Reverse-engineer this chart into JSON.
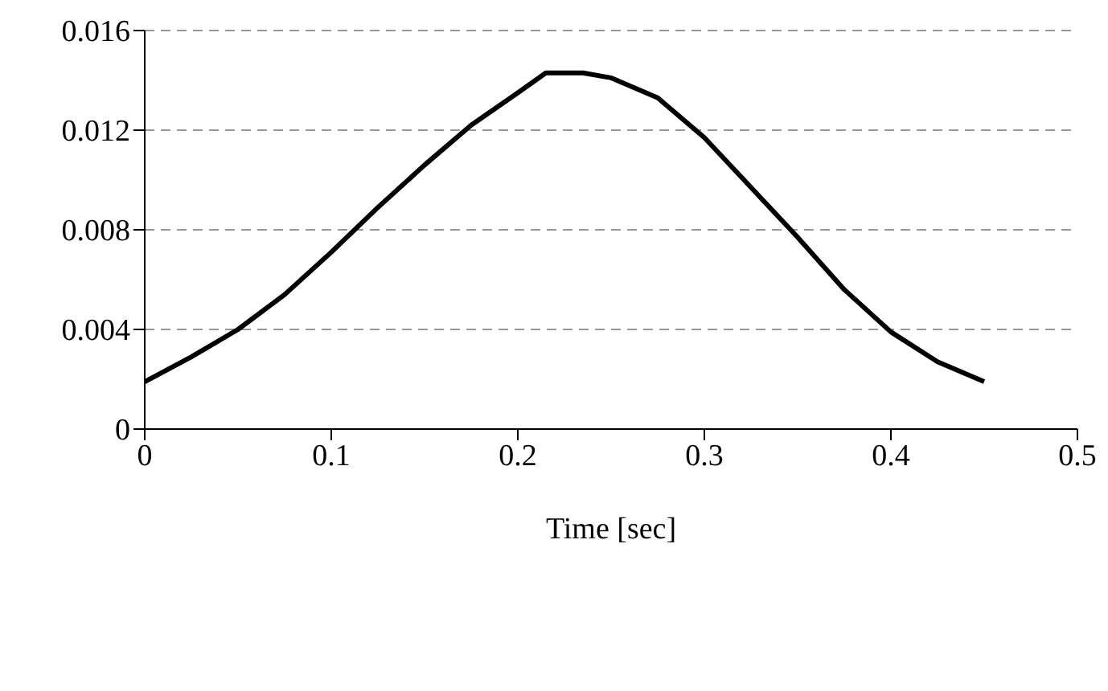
{
  "chart_data": {
    "type": "line",
    "xlabel": "Time [sec]",
    "x": [
      0,
      0.025,
      0.05,
      0.075,
      0.1,
      0.125,
      0.15,
      0.175,
      0.2,
      0.215,
      0.235,
      0.25,
      0.275,
      0.3,
      0.325,
      0.35,
      0.375,
      0.4,
      0.425,
      0.45
    ],
    "series": [
      {
        "color": "#000000",
        "values": [
          0.0019,
          0.0029,
          0.004,
          0.0054,
          0.0071,
          0.0089,
          0.0106,
          0.0122,
          0.0135,
          0.0143,
          0.0143,
          0.0141,
          0.0133,
          0.0117,
          0.0097,
          0.0077,
          0.0056,
          0.0039,
          0.0027,
          0.0019
        ]
      }
    ],
    "xlim": [
      0,
      0.5
    ],
    "xticks": [
      0,
      0.1,
      0.2,
      0.3,
      0.4,
      0.5
    ],
    "ylim": [
      0,
      0.016
    ],
    "yticks": [
      0,
      0.004,
      0.008,
      0.012,
      0.016
    ],
    "grid": "y",
    "legend": false,
    "marker": "none",
    "line_style": "solid"
  }
}
